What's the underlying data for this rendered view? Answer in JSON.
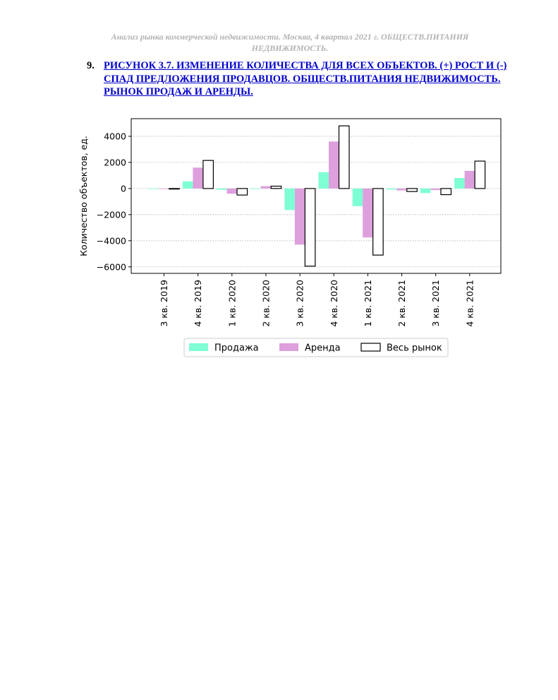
{
  "header": {
    "line1": "Анализ рынка коммерческой недвижимости.  Москва,  4 квартал 2021 г.  ОБЩЕСТВ.ПИТАНИЯ",
    "line2": "НЕДВИЖИМОСТЬ."
  },
  "figure": {
    "number": "9.",
    "title": "РИСУНОК 3.7. ИЗМЕНЕНИЕ КОЛИЧЕСТВА ДЛЯ ВСЕХ ОБЪЕКТОВ. (+) РОСТ И (-) СПАД ПРЕДЛОЖЕНИЯ ПРОДАВЦОВ. ОБЩЕСТВ.ПИТАНИЯ НЕДВИЖИМОСТЬ. РЫНОК ПРОДАЖ И АРЕНДЫ."
  },
  "chart_data": {
    "type": "bar",
    "title": "",
    "xlabel": "",
    "ylabel": "Количество объектов, ед.",
    "ylim": [
      -6500,
      5350
    ],
    "yticks": [
      4000,
      2000,
      0,
      -2000,
      -4000,
      -6000
    ],
    "ytick_labels": [
      "4000",
      "2000",
      "0",
      "−2000",
      "−4000",
      "−6000"
    ],
    "grid": "horizontal-dotted",
    "legend_position": "bottom-center",
    "categories": [
      "3 кв. 2019",
      "4 кв. 2019",
      "1 кв. 2020",
      "2 кв. 2020",
      "3 кв. 2020",
      "4 кв. 2020",
      "1 кв. 2021",
      "2 кв. 2021",
      "3 кв. 2021",
      "4 кв. 2021"
    ],
    "series": [
      {
        "name": "Продажа",
        "color": "#7fffd4",
        "style": "filled",
        "values": [
          0,
          550,
          -100,
          0,
          -1650,
          1250,
          -1350,
          -80,
          -350,
          800
        ]
      },
      {
        "name": "Аренда",
        "color": "#dda0dd",
        "style": "filled",
        "values": [
          0,
          1600,
          -400,
          180,
          -4300,
          3600,
          -3750,
          -150,
          -120,
          1350
        ]
      },
      {
        "name": "Весь рынок",
        "color": "#ffffff",
        "style": "outlined",
        "values": [
          -30,
          2150,
          -500,
          180,
          -5950,
          4800,
          -5100,
          -230,
          -470,
          2100
        ]
      }
    ]
  }
}
